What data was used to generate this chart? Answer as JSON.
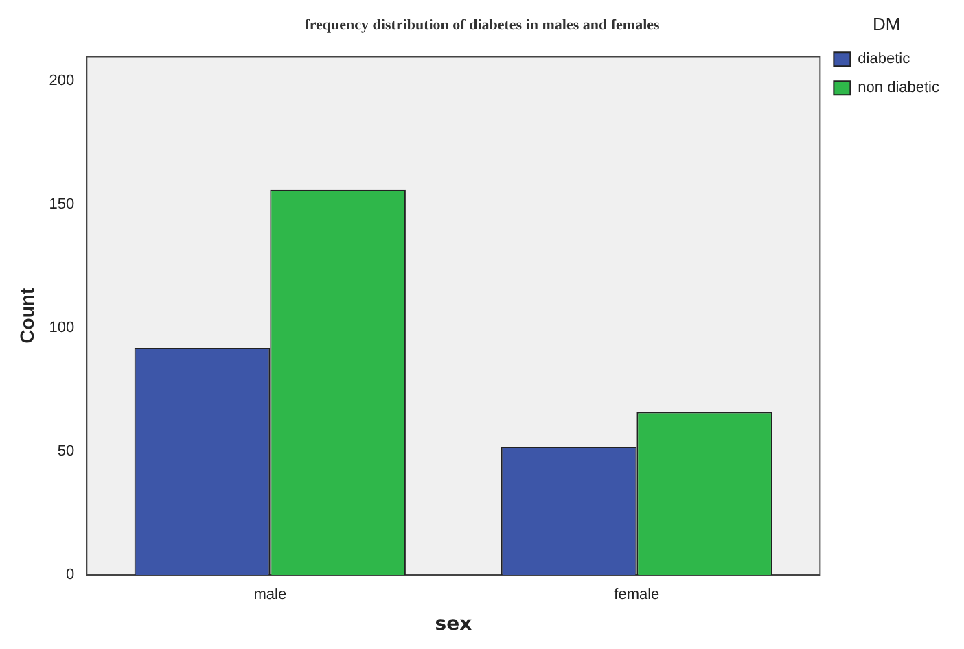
{
  "chart_data": {
    "type": "bar",
    "title": "frequency distribution of diabetes in males and females",
    "xlabel": "sex",
    "ylabel": "Count",
    "legend_title": "DM",
    "categories": [
      "male",
      "female"
    ],
    "series": [
      {
        "name": "diabetic",
        "color": "#3d56a8",
        "values": [
          92,
          52
        ]
      },
      {
        "name": "non diabetic",
        "color": "#2fb74a",
        "values": [
          156,
          66
        ]
      }
    ],
    "ylim": [
      0,
      210
    ],
    "yticks": [
      0,
      50,
      100,
      150,
      200
    ],
    "grid": false,
    "legend": "top right"
  }
}
